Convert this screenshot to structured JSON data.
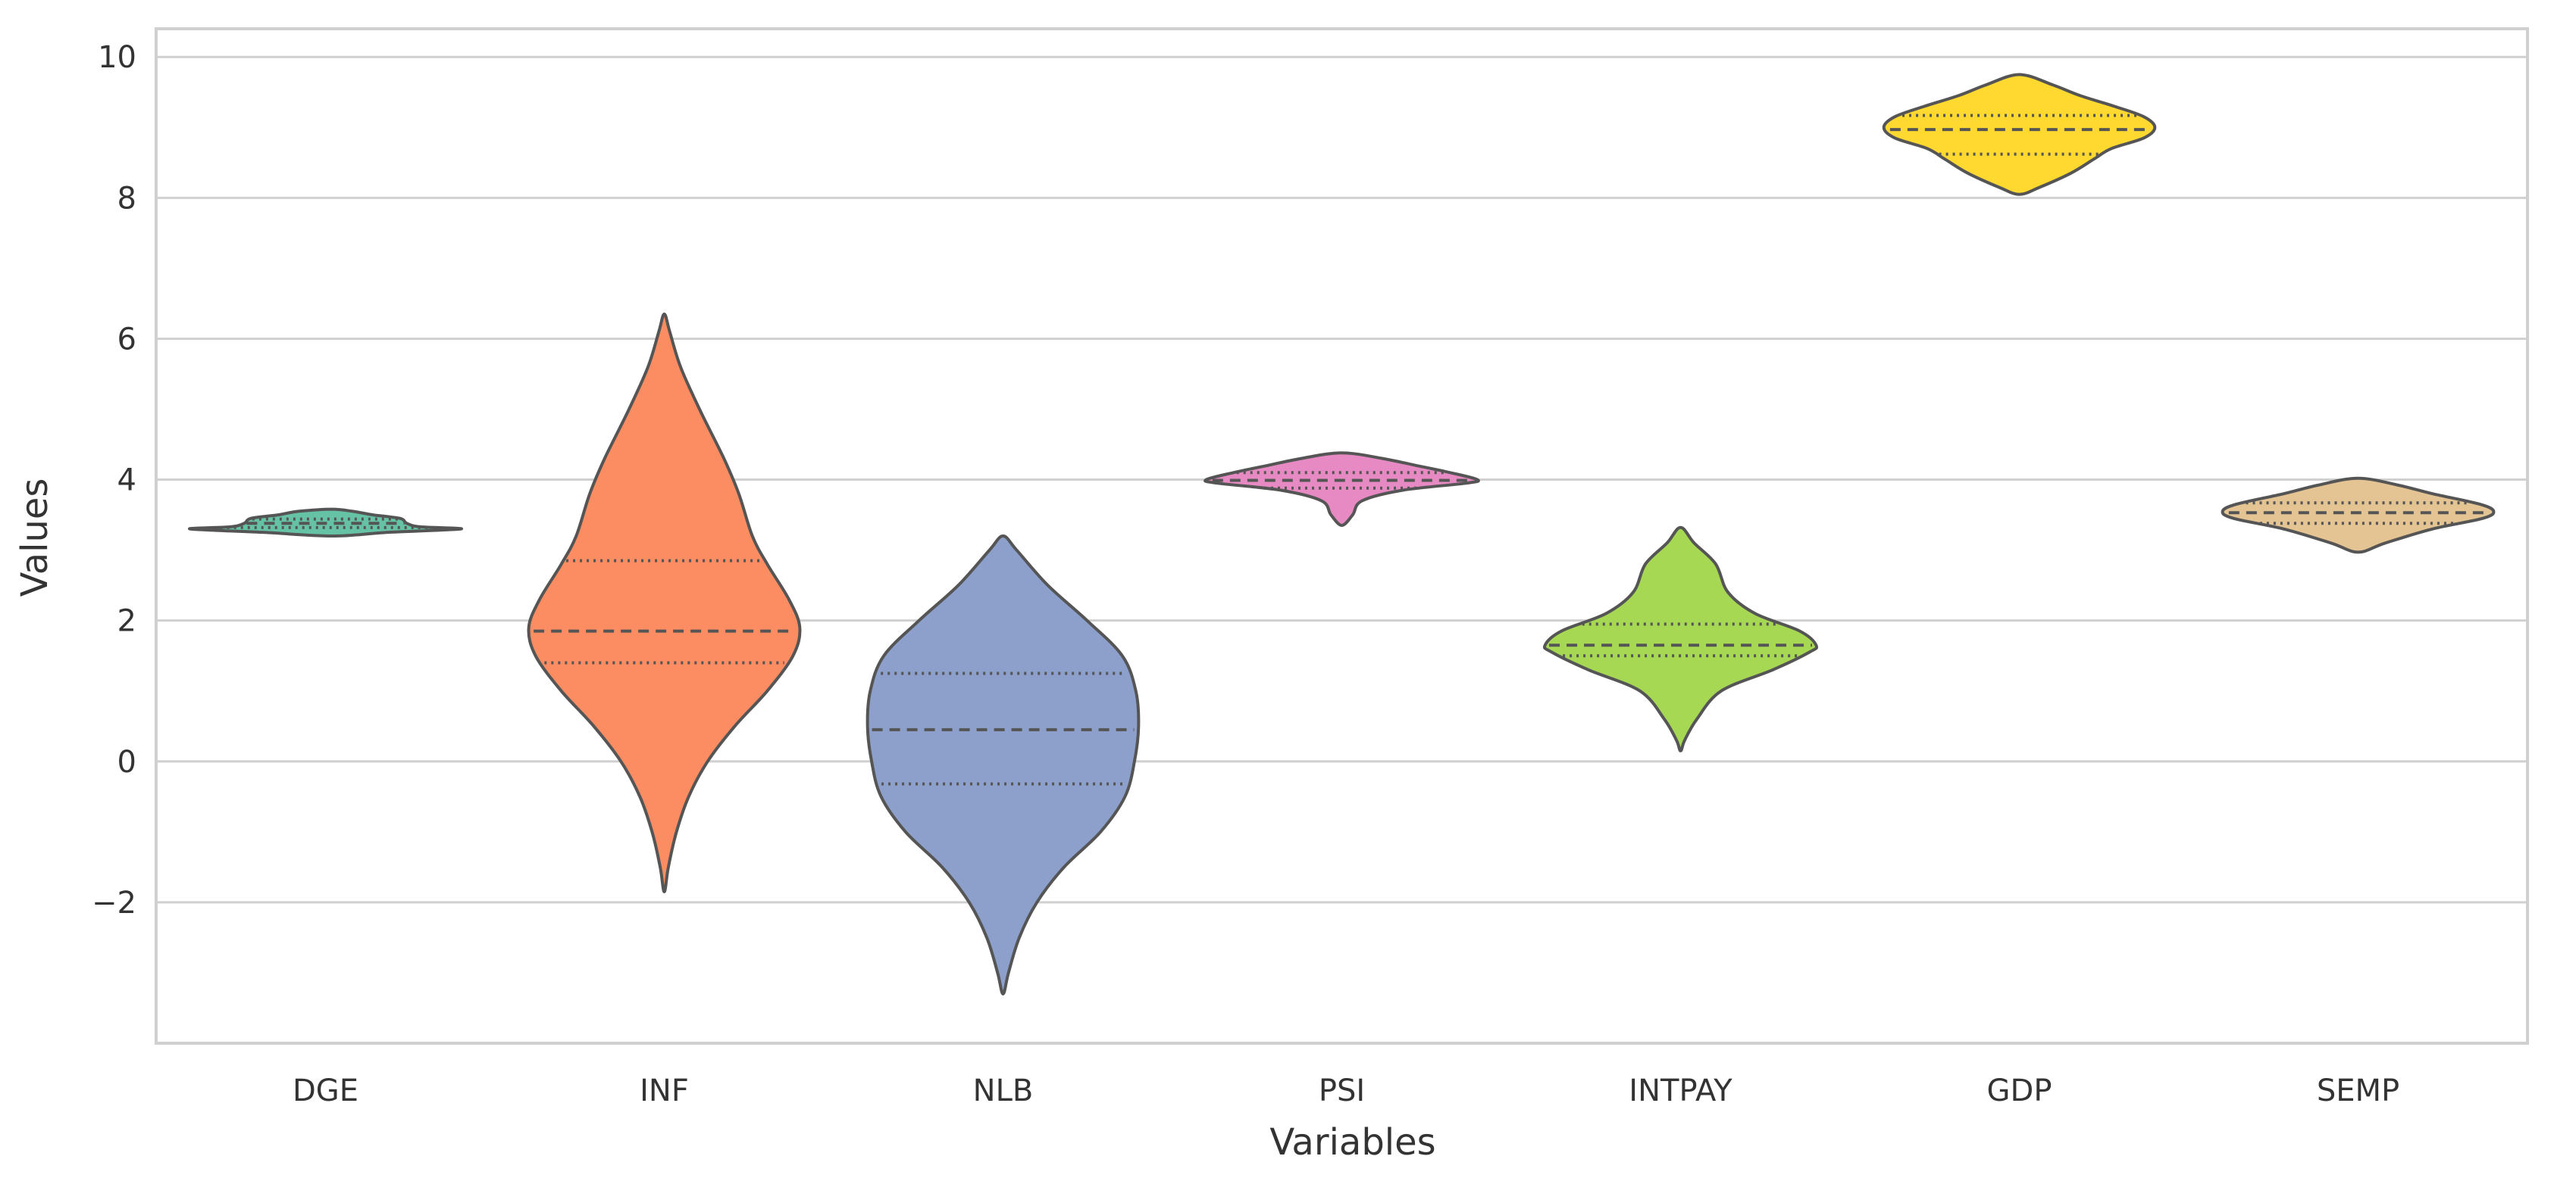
{
  "chart_data": {
    "type": "violin",
    "title": "",
    "xlabel": "Variables",
    "ylabel": "Values",
    "ylim": [
      -4,
      10.4
    ],
    "yticks": [
      -2,
      0,
      2,
      4,
      6,
      8,
      10
    ],
    "ytick_labels": [
      "−2",
      "0",
      "2",
      "4",
      "6",
      "8",
      "10"
    ],
    "grid": "horizontal",
    "categories": [
      "DGE",
      "INF",
      "NLB",
      "PSI",
      "INTPAY",
      "GDP",
      "SEMP"
    ],
    "colors": [
      "#66c2a5",
      "#fc8d62",
      "#8da0cb",
      "#e78ac3",
      "#a6d854",
      "#ffd92f",
      "#e5c494"
    ],
    "outline_color": "#555555",
    "violins": [
      {
        "name": "DGE",
        "min": 3.2,
        "max": 3.58,
        "q1": 3.32,
        "median": 3.38,
        "q3": 3.44,
        "profile": [
          [
            3.2,
            0.05
          ],
          [
            3.25,
            0.45
          ],
          [
            3.3,
            1.0
          ],
          [
            3.33,
            0.7
          ],
          [
            3.38,
            0.6
          ],
          [
            3.45,
            0.55
          ],
          [
            3.5,
            0.35
          ],
          [
            3.55,
            0.2
          ],
          [
            3.58,
            0.05
          ]
        ]
      },
      {
        "name": "INF",
        "min": -1.85,
        "max": 6.35,
        "q1": 1.4,
        "median": 1.85,
        "q3": 2.85,
        "profile": [
          [
            -1.85,
            0.0
          ],
          [
            -1.5,
            0.03
          ],
          [
            -1.0,
            0.09
          ],
          [
            -0.5,
            0.18
          ],
          [
            0.0,
            0.32
          ],
          [
            0.5,
            0.52
          ],
          [
            1.0,
            0.76
          ],
          [
            1.5,
            0.95
          ],
          [
            1.9,
            1.0
          ],
          [
            2.3,
            0.92
          ],
          [
            2.8,
            0.76
          ],
          [
            3.2,
            0.65
          ],
          [
            3.8,
            0.55
          ],
          [
            4.3,
            0.44
          ],
          [
            5.0,
            0.26
          ],
          [
            5.6,
            0.12
          ],
          [
            6.1,
            0.04
          ],
          [
            6.35,
            0.0
          ]
        ]
      },
      {
        "name": "NLB",
        "min": -3.3,
        "max": 3.2,
        "q1": -0.32,
        "median": 0.45,
        "q3": 1.25,
        "profile": [
          [
            -3.3,
            0.0
          ],
          [
            -3.0,
            0.04
          ],
          [
            -2.5,
            0.12
          ],
          [
            -2.0,
            0.25
          ],
          [
            -1.5,
            0.45
          ],
          [
            -1.0,
            0.72
          ],
          [
            -0.5,
            0.9
          ],
          [
            0.0,
            0.97
          ],
          [
            0.5,
            1.0
          ],
          [
            1.0,
            0.98
          ],
          [
            1.5,
            0.88
          ],
          [
            2.0,
            0.62
          ],
          [
            2.5,
            0.33
          ],
          [
            3.0,
            0.1
          ],
          [
            3.2,
            0.0
          ]
        ]
      },
      {
        "name": "PSI",
        "min": 3.35,
        "max": 4.38,
        "q1": 3.88,
        "median": 3.99,
        "q3": 4.1,
        "profile": [
          [
            3.35,
            0.0
          ],
          [
            3.5,
            0.08
          ],
          [
            3.7,
            0.15
          ],
          [
            3.85,
            0.45
          ],
          [
            3.95,
            0.92
          ],
          [
            4.0,
            1.0
          ],
          [
            4.1,
            0.8
          ],
          [
            4.2,
            0.55
          ],
          [
            4.3,
            0.3
          ],
          [
            4.38,
            0.0
          ]
        ]
      },
      {
        "name": "INTPAY",
        "min": 0.15,
        "max": 3.32,
        "q1": 1.5,
        "median": 1.65,
        "q3": 1.95,
        "profile": [
          [
            0.15,
            0.0
          ],
          [
            0.3,
            0.03
          ],
          [
            0.6,
            0.12
          ],
          [
            1.0,
            0.3
          ],
          [
            1.3,
            0.68
          ],
          [
            1.55,
            0.95
          ],
          [
            1.65,
            1.0
          ],
          [
            1.85,
            0.88
          ],
          [
            2.1,
            0.55
          ],
          [
            2.4,
            0.35
          ],
          [
            2.8,
            0.26
          ],
          [
            3.1,
            0.1
          ],
          [
            3.32,
            0.0
          ]
        ]
      },
      {
        "name": "GDP",
        "min": 8.05,
        "max": 9.75,
        "q1": 8.62,
        "median": 8.97,
        "q3": 9.17,
        "profile": [
          [
            8.05,
            0.0
          ],
          [
            8.15,
            0.15
          ],
          [
            8.35,
            0.38
          ],
          [
            8.55,
            0.55
          ],
          [
            8.7,
            0.68
          ],
          [
            8.85,
            0.92
          ],
          [
            9.0,
            1.0
          ],
          [
            9.15,
            0.92
          ],
          [
            9.3,
            0.7
          ],
          [
            9.45,
            0.45
          ],
          [
            9.6,
            0.25
          ],
          [
            9.75,
            0.0
          ]
        ]
      },
      {
        "name": "SEMP",
        "min": 2.97,
        "max": 4.02,
        "q1": 3.38,
        "median": 3.53,
        "q3": 3.67,
        "profile": [
          [
            2.97,
            0.0
          ],
          [
            3.1,
            0.2
          ],
          [
            3.3,
            0.55
          ],
          [
            3.45,
            0.92
          ],
          [
            3.55,
            1.0
          ],
          [
            3.65,
            0.9
          ],
          [
            3.8,
            0.55
          ],
          [
            3.92,
            0.3
          ],
          [
            4.02,
            0.0
          ]
        ]
      }
    ]
  }
}
